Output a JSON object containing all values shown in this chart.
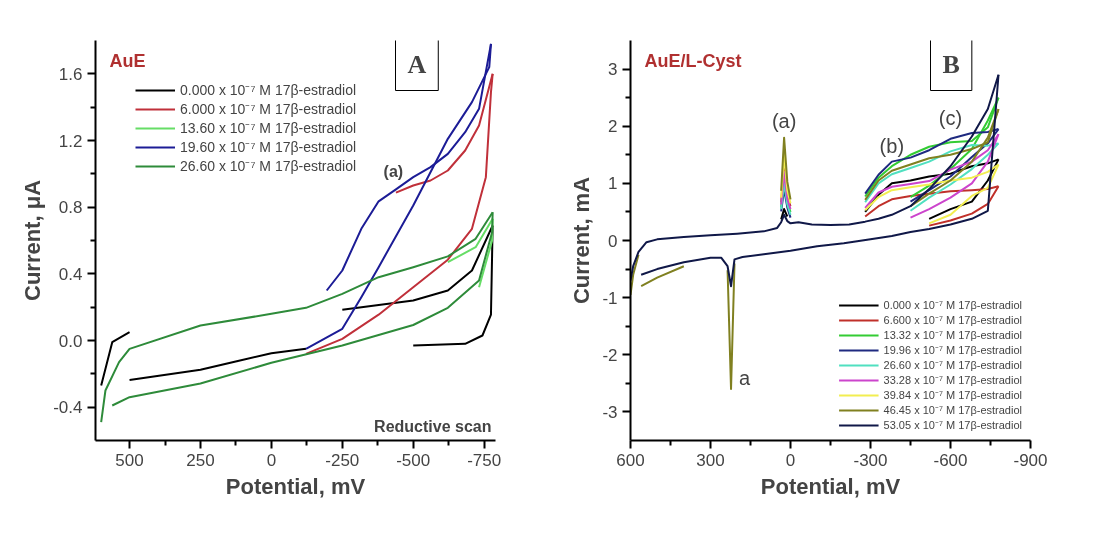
{
  "chart_data": [
    {
      "type": "line",
      "title": "A",
      "subtitle": "AuE",
      "xlabel": "Potential, mV",
      "ylabel": "Current, μA",
      "xlim": [
        620,
        -790
      ],
      "ylim": [
        -0.6,
        1.8
      ],
      "xticks": [
        500,
        250,
        0,
        -250,
        -500,
        -750,
        {
          "value": 375,
          "label": null
        },
        {
          "value": 125,
          "label": null
        },
        {
          "value": -125,
          "label": null
        },
        {
          "value": -375,
          "label": null
        },
        {
          "value": -625,
          "label": null
        }
      ],
      "yticks": [
        {
          "value": -0.4,
          "label": "-0.4"
        },
        {
          "value": 0,
          "label": "0.0"
        },
        {
          "value": 0.4,
          "label": "0.4"
        },
        {
          "value": 0.8,
          "label": "0.8"
        },
        {
          "value": 1.2,
          "label": "1.2"
        },
        {
          "value": 1.6,
          "label": "1.6"
        },
        {
          "value": -0.2,
          "label": null
        },
        {
          "value": 0.2,
          "label": null
        },
        {
          "value": 0.6,
          "label": null
        },
        {
          "value": 1.0,
          "label": null
        },
        {
          "value": 1.4,
          "label": null
        }
      ],
      "grid": false,
      "legend": "top left",
      "marker": "none",
      "line_style": "solid",
      "annotations": [
        {
          "text": "(a)",
          "x": -430,
          "y": 0.93
        },
        "Reductive scan"
      ],
      "series": [
        {
          "name": "0.000 x 10⁻⁷ M 17β-estradiol",
          "color": "#000000",
          "x": [
            600,
            561,
            500,
            250,
            0,
            -250,
            -500,
            -622,
            -707,
            -780
          ],
          "values": [
            -0.27,
            -0.01,
            0.05,
            null,
            null,
            0.185,
            0.24,
            0.3,
            0.42,
            0.69
          ]
        },
        {
          "color": "#000000",
          "x": [
            -780,
            -774,
            -744,
            -683,
            -500,
            -250,
            -122,
            0,
            122,
            250,
            500
          ],
          "values": [
            0.69,
            0.155,
            0.03,
            -0.02,
            -0.03,
            null,
            -0.05,
            -0.076,
            -0.124,
            -0.175,
            -0.237
          ]
        },
        {
          "name": "6.000 x 10⁻⁷ M 17β-estradiol",
          "color": "#c0303a",
          "x": [
            -439,
            -500,
            -561,
            -622,
            -683,
            -732,
            -780
          ],
          "values": [
            0.887,
            0.93,
            0.96,
            1.02,
            1.14,
            1.29,
            1.6
          ]
        },
        {
          "color": "#c0303a",
          "x": [
            -780,
            -774,
            -756,
            -707,
            -622,
            -500,
            -378,
            -250,
            -122
          ],
          "values": [
            1.6,
            1.49,
            0.98,
            0.67,
            0.485,
            0.32,
            0.155,
            0.01,
            -0.08
          ]
        },
        {
          "name": "13.60 x 10⁻⁷ M 17β-estradiol",
          "color": "#66dd66",
          "x": [
            -622,
            -720,
            -780
          ],
          "values": [
            0.47,
            0.56,
            0.73
          ]
        },
        {
          "color": "#66dd66",
          "x": [
            -780,
            -778,
            -732
          ],
          "values": [
            0.73,
            0.6,
            0.32
          ]
        },
        {
          "name": "19.60 x 10⁻⁷ M 17β-estradiol",
          "color": "#1c1c96",
          "x": [
            -195,
            -250,
            -317,
            -378,
            -439,
            -500,
            -561,
            -622,
            -683,
            -732,
            -774
          ],
          "values": [
            0.3,
            0.42,
            0.67,
            0.835,
            0.907,
            0.98,
            1.04,
            1.12,
            1.25,
            1.39,
            1.78
          ]
        },
        {
          "color": "#1c1c96",
          "x": [
            -774,
            -768,
            -707,
            -622,
            -500,
            -378,
            -317,
            -250,
            -122
          ],
          "values": [
            1.78,
            1.64,
            1.43,
            1.21,
            0.81,
            0.44,
            0.26,
            0.07,
            -0.05
          ]
        },
        {
          "name": "26.60 x 10⁻⁷ M 17β-estradiol",
          "color": "#2e8b3a",
          "x": [
            600,
            585,
            537,
            500,
            250,
            0,
            -122,
            -250,
            -378,
            -500,
            -622,
            -720,
            -780
          ],
          "values": [
            -0.49,
            -0.3,
            -0.13,
            -0.05,
            0.09,
            0.16,
            0.196,
            0.28,
            0.38,
            0.44,
            0.505,
            0.61,
            0.77
          ]
        },
        {
          "color": "#2e8b3a",
          "x": [
            -780,
            -778,
            -732,
            -622,
            -500,
            -250,
            0,
            250,
            500,
            561
          ],
          "values": [
            0.77,
            0.65,
            0.36,
            0.196,
            0.093,
            -0.03,
            -0.134,
            -0.258,
            -0.34,
            -0.39
          ]
        }
      ]
    },
    {
      "type": "line",
      "title": "B",
      "subtitle": "AuE/L-Cyst",
      "xlabel": "Potential, mV",
      "ylabel": "Current, mA",
      "xlim": [
        600,
        -900
      ],
      "ylim": [
        -3.5,
        3.5
      ],
      "xticks": [
        600,
        300,
        0,
        -300,
        -600,
        -900,
        {
          "value": 450,
          "label": null
        },
        {
          "value": 150,
          "label": null
        },
        {
          "value": -150,
          "label": null
        },
        {
          "value": -450,
          "label": null
        },
        {
          "value": -750,
          "label": null
        }
      ],
      "yticks": [
        -3,
        -2,
        -1,
        0,
        1,
        2,
        3,
        {
          "value": -2.5,
          "label": null
        },
        {
          "value": -1.5,
          "label": null
        },
        {
          "value": -0.5,
          "label": null
        },
        {
          "value": 0.5,
          "label": null
        },
        {
          "value": 1.5,
          "label": null
        },
        {
          "value": 2.5,
          "label": null
        }
      ],
      "grid": false,
      "legend": "bottom right",
      "marker": "none",
      "line_style": "solid",
      "annotations": [
        {
          "text": "(a)",
          "x": 24,
          "y": 1.8
        },
        {
          "text": "(b)",
          "x": -380,
          "y": 1.35
        },
        {
          "text": "(c)",
          "x": -600,
          "y": 1.85
        },
        {
          "text": "a",
          "x": 223,
          "y": -2.6
        }
      ],
      "series": [
        {
          "name": "0.000 x 10⁻⁷ M 17β-estradiol",
          "color": "#000000",
          "x": [
            35,
            24,
            12,
            0,
            -30,
            -80,
            -150,
            -220,
            -280,
            -330,
            -380,
            -450,
            -520,
            -600,
            -680,
            -740,
            -780
          ],
          "values": [
            0.37,
            0.55,
            0.42,
            null,
            null,
            null,
            null,
            null,
            0.5,
            0.8,
            1.0,
            1.05,
            1.12,
            1.17,
            1.3,
            1.35,
            1.42
          ]
        },
        {
          "color": "#000000",
          "x": [
            -780,
            -740,
            -680,
            -600,
            -520
          ],
          "values": [
            1.42,
            1.05,
            0.68,
            0.55,
            0.38
          ]
        },
        {
          "name": "6.600 x 10⁻⁷ M 17β-estradiol",
          "color": "#c0302a",
          "x": [
            35,
            24,
            12,
            0,
            -30,
            -80,
            -150,
            -220,
            -280,
            -330,
            -380,
            -450,
            -520,
            -600,
            -680,
            -740,
            -780
          ],
          "values": [
            0.67,
            1.3,
            0.78,
            0.6,
            null,
            null,
            null,
            null,
            0.42,
            0.6,
            0.72,
            0.78,
            0.82,
            0.86,
            0.88,
            0.9,
            0.95
          ]
        },
        {
          "color": "#c0302a",
          "x": [
            -780,
            -740,
            -680,
            -600,
            -520
          ],
          "values": [
            0.95,
            0.64,
            0.47,
            0.35,
            0.26
          ]
        },
        {
          "name": "13.32 x 10⁻⁷ M 17β-estradiol",
          "color": "#33cc33",
          "x": [
            35,
            24,
            12,
            0,
            -30,
            -80,
            -150,
            -220,
            -280,
            -330,
            -380,
            -450,
            -520,
            -600,
            -680,
            -740,
            -780
          ],
          "values": [
            0.59,
            1.1,
            0.68,
            0.5,
            null,
            null,
            null,
            null,
            0.77,
            1.1,
            1.3,
            1.5,
            1.64,
            1.72,
            1.74,
            1.98,
            2.5
          ]
        },
        {
          "color": "#33cc33",
          "x": [
            -780,
            -740,
            -680,
            -600,
            -520,
            -450
          ],
          "values": [
            2.5,
            2.1,
            1.6,
            1.25,
            0.96,
            0.76
          ]
        },
        {
          "name": "19.96 x 10⁻⁷ M 17β-estradiol",
          "color": "#1f2a80",
          "x": [
            35,
            24,
            12,
            0,
            -30,
            -80,
            -150,
            -220,
            -280,
            -330,
            -380,
            -450,
            -520,
            -600,
            -680,
            -740,
            -780
          ],
          "values": [
            0.51,
            0.9,
            0.58,
            0.4,
            null,
            null,
            null,
            null,
            0.82,
            1.15,
            1.38,
            1.45,
            1.58,
            1.78,
            1.88,
            1.9,
            1.95
          ]
        },
        {
          "color": "#1f2a80",
          "x": [
            -780,
            -740,
            -680,
            -600,
            -520,
            -450
          ],
          "values": [
            1.95,
            1.7,
            1.46,
            1.12,
            0.88,
            0.68
          ]
        },
        {
          "name": "26.60 x 10⁻⁷ M 17β-estradiol",
          "color": "#50e0c0",
          "x": [
            35,
            24,
            12,
            0,
            -30,
            -80,
            -150,
            -220,
            -280,
            -330,
            -380,
            -450,
            -520,
            -600,
            -680,
            -740,
            -780
          ],
          "values": [
            0.55,
            1.0,
            0.63,
            0.45,
            null,
            null,
            null,
            null,
            0.67,
            1.0,
            1.16,
            1.27,
            1.38,
            1.56,
            1.67,
            1.66,
            1.7
          ]
        },
        {
          "color": "#50e0c0",
          "x": [
            -780,
            -740,
            -680,
            -600,
            -520,
            -450
          ],
          "values": [
            1.7,
            1.5,
            1.25,
            0.98,
            0.75,
            0.52
          ]
        },
        {
          "name": "33.28 x 10⁻⁷ M 17β-estradiol",
          "color": "#cc44cc",
          "x": [
            35,
            24,
            12,
            0,
            -30,
            -80,
            -150,
            -220,
            -280,
            -330,
            -380,
            -450,
            -520,
            -600,
            -680,
            -740,
            -780
          ],
          "values": [
            0.63,
            1.2,
            0.73,
            0.55,
            null,
            null,
            null,
            null,
            0.57,
            0.84,
            0.94,
            0.99,
            1.04,
            1.24,
            1.38,
            1.58,
            1.86
          ]
        },
        {
          "color": "#cc44cc",
          "x": [
            -780,
            -740,
            -680,
            -600,
            -520,
            -450
          ],
          "values": [
            1.86,
            1.38,
            1.0,
            0.75,
            0.55,
            0.4
          ]
        },
        {
          "name": "39.84 x 10⁻⁷ M 17β-estradiol",
          "color": "#f2ee50",
          "x": [
            35,
            24,
            12,
            0,
            -30,
            -80,
            -150,
            -220,
            -280,
            -330,
            -380,
            -450,
            -520,
            -600,
            -680,
            -740,
            -780
          ],
          "values": [
            0.75,
            1.5,
            0.88,
            0.65,
            null,
            null,
            null,
            null,
            0.53,
            0.76,
            0.88,
            0.93,
            0.98,
            1.05,
            1.1,
            1.2,
            1.33
          ]
        },
        {
          "color": "#f2ee50",
          "x": [
            -780,
            -740,
            -680,
            -600,
            -520
          ],
          "values": [
            1.33,
            0.92,
            0.78,
            0.45,
            0.3
          ]
        },
        {
          "name": "46.45 x 10⁻⁷ M 17β-estradiol",
          "color": "#808020",
          "x": [
            600,
            590,
            570,
            540,
            500,
            400,
            300,
            200,
            100,
            50,
            35,
            24,
            12,
            0,
            -30,
            -80,
            -150,
            -220,
            -280,
            -330,
            -380,
            -450,
            -520,
            -600,
            -680,
            -740,
            -780
          ],
          "values": [
            -0.95,
            -0.6,
            -0.25,
            null,
            null,
            null,
            null,
            null,
            null,
            null,
            0.87,
            1.8,
            1.03,
            0.72,
            null,
            null,
            null,
            null,
            0.71,
            1.05,
            1.22,
            1.33,
            1.44,
            1.5,
            1.6,
            1.72,
            2.3
          ]
        },
        {
          "color": "#808020",
          "x": [
            -780,
            -740,
            -680,
            -600,
            -520,
            -450,
            -380,
            -300,
            -200,
            -100,
            0,
            100,
            180,
            210,
            223,
            236,
            260,
            300,
            400,
            500,
            560
          ],
          "values": [
            2.3,
            1.8,
            1.38,
            1.05,
            0.82,
            0.6,
            null,
            null,
            null,
            null,
            null,
            null,
            null,
            -0.4,
            -2.6,
            -0.52,
            null,
            null,
            -0.45,
            -0.65,
            -0.8
          ]
        },
        {
          "name": "53.05 x 10⁻⁷ M 17β-estradiol",
          "color": "#101848",
          "x": [
            600,
            590,
            570,
            540,
            500,
            400,
            300,
            200,
            100,
            50,
            35,
            24,
            12,
            0,
            -30,
            -80,
            -150,
            -220,
            -280,
            -330,
            -380,
            -450,
            -520,
            -600,
            -680,
            -740,
            -780
          ],
          "values": [
            -0.7,
            -0.45,
            -0.2,
            -0.03,
            0.02,
            0.06,
            0.09,
            0.12,
            0.16,
            0.22,
            0.32,
            0.45,
            0.34,
            0.3,
            0.32,
            0.28,
            0.27,
            0.28,
            0.33,
            0.38,
            0.45,
            0.6,
            0.9,
            1.3,
            1.82,
            2.3,
            2.9
          ]
        },
        {
          "color": "#101848",
          "x": [
            -780,
            -740,
            -680,
            -600,
            -520,
            -450,
            -380,
            -300,
            -200,
            -100,
            0,
            100,
            180,
            210,
            223,
            236,
            260,
            300,
            400,
            500,
            560
          ],
          "values": [
            2.9,
            0.52,
            0.38,
            0.28,
            0.2,
            0.15,
            0.08,
            0.02,
            -0.05,
            -0.1,
            -0.18,
            -0.24,
            -0.29,
            -0.33,
            -0.8,
            -0.45,
            -0.3,
            -0.3,
            -0.38,
            -0.5,
            -0.6
          ]
        }
      ]
    }
  ]
}
